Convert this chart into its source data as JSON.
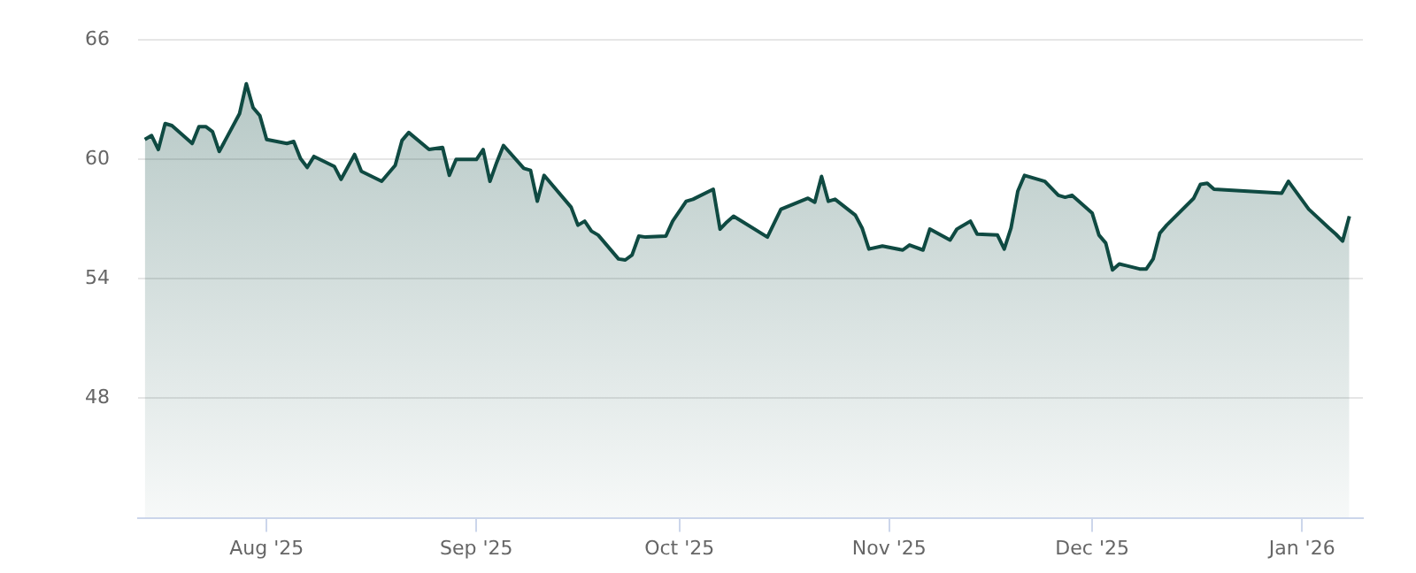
{
  "chart_data": {
    "type": "area",
    "xlim": [
      "2025-07-13",
      "2026-01-10"
    ],
    "xticks": [
      {
        "value": "2025-08-01",
        "label": "Aug '25"
      },
      {
        "value": "2025-09-01",
        "label": "Sep '25"
      },
      {
        "value": "2025-10-01",
        "label": "Oct '25"
      },
      {
        "value": "2025-11-01",
        "label": "Nov '25"
      },
      {
        "value": "2025-12-01",
        "label": "Dec '25"
      },
      {
        "value": "2026-01-01",
        "label": "Jan '26"
      }
    ],
    "ylim": [
      42,
      66
    ],
    "yticks": [
      48,
      54,
      60,
      66
    ],
    "grid": "y",
    "legend": false,
    "marker": "none",
    "series": [
      {
        "color": "#0f4a42",
        "x": [
          "2025-07-14",
          "2025-07-15",
          "2025-07-16",
          "2025-07-17",
          "2025-07-18",
          "2025-07-21",
          "2025-07-22",
          "2025-07-23",
          "2025-07-24",
          "2025-07-25",
          "2025-07-28",
          "2025-07-29",
          "2025-07-30",
          "2025-07-31",
          "2025-08-01",
          "2025-08-04",
          "2025-08-05",
          "2025-08-06",
          "2025-08-07",
          "2025-08-08",
          "2025-08-11",
          "2025-08-12",
          "2025-08-14",
          "2025-08-15",
          "2025-08-18",
          "2025-08-20",
          "2025-08-21",
          "2025-08-22",
          "2025-08-25",
          "2025-08-27",
          "2025-08-28",
          "2025-08-29",
          "2025-09-01",
          "2025-09-02",
          "2025-09-03",
          "2025-09-04",
          "2025-09-05",
          "2025-09-08",
          "2025-09-09",
          "2025-09-10",
          "2025-09-11",
          "2025-09-15",
          "2025-09-16",
          "2025-09-17",
          "2025-09-18",
          "2025-09-19",
          "2025-09-22",
          "2025-09-23",
          "2025-09-24",
          "2025-09-25",
          "2025-09-26",
          "2025-09-29",
          "2025-09-30",
          "2025-10-02",
          "2025-10-03",
          "2025-10-06",
          "2025-10-07",
          "2025-10-08",
          "2025-10-09",
          "2025-10-14",
          "2025-10-16",
          "2025-10-20",
          "2025-10-21",
          "2025-10-22",
          "2025-10-23",
          "2025-10-24",
          "2025-10-27",
          "2025-10-28",
          "2025-10-29",
          "2025-10-31",
          "2025-11-03",
          "2025-11-04",
          "2025-11-06",
          "2025-11-07",
          "2025-11-10",
          "2025-11-11",
          "2025-11-13",
          "2025-11-14",
          "2025-11-17",
          "2025-11-18",
          "2025-11-19",
          "2025-11-20",
          "2025-11-21",
          "2025-11-24",
          "2025-11-26",
          "2025-11-27",
          "2025-11-28",
          "2025-12-01",
          "2025-12-02",
          "2025-12-03",
          "2025-12-04",
          "2025-12-05",
          "2025-12-08",
          "2025-12-09",
          "2025-12-10",
          "2025-12-11",
          "2025-12-12",
          "2025-12-16",
          "2025-12-17",
          "2025-12-18",
          "2025-12-19",
          "2025-12-29",
          "2025-12-30",
          "2026-01-02",
          "2026-01-05",
          "2026-01-06",
          "2026-01-07",
          "2026-01-08"
        ],
        "values": [
          61.0,
          61.2,
          60.5,
          61.8,
          61.7,
          60.8,
          61.65,
          61.65,
          61.4,
          60.4,
          62.3,
          63.8,
          62.6,
          62.2,
          61.0,
          60.8,
          60.9,
          60.05,
          59.6,
          60.15,
          59.65,
          59.0,
          60.25,
          59.4,
          58.9,
          59.7,
          60.95,
          61.35,
          60.5,
          60.6,
          59.2,
          60.0,
          60.0,
          60.5,
          58.9,
          59.85,
          60.7,
          59.55,
          59.45,
          57.9,
          59.2,
          57.6,
          56.7,
          56.9,
          56.4,
          56.2,
          55.0,
          54.95,
          55.2,
          56.15,
          56.1,
          56.15,
          56.9,
          57.9,
          58.0,
          58.5,
          56.5,
          56.85,
          57.15,
          56.1,
          57.5,
          58.05,
          57.85,
          59.15,
          57.9,
          58.0,
          57.2,
          56.55,
          55.5,
          55.65,
          55.45,
          55.7,
          55.45,
          56.5,
          55.95,
          56.5,
          56.9,
          56.25,
          56.2,
          55.5,
          56.55,
          58.4,
          59.2,
          58.9,
          58.2,
          58.1,
          58.2,
          57.3,
          56.2,
          55.8,
          54.45,
          54.75,
          54.5,
          54.5,
          55.0,
          56.3,
          56.7,
          58.05,
          58.75,
          58.8,
          58.5,
          58.3,
          58.9,
          57.5,
          56.55,
          56.25,
          55.9,
          57.15
        ]
      }
    ]
  }
}
